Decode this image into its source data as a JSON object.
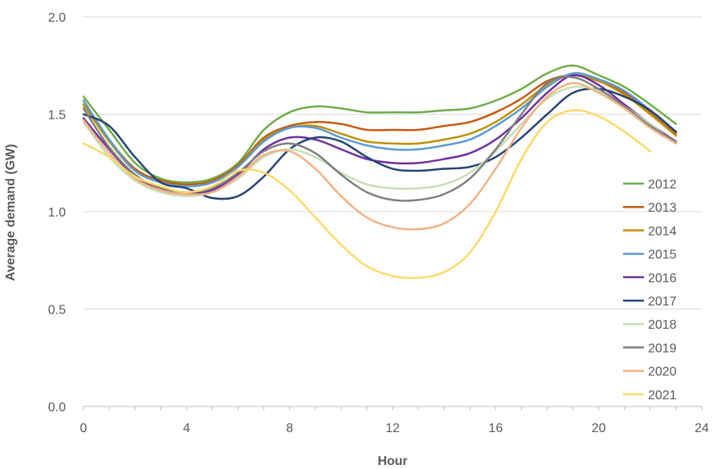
{
  "chart_data": {
    "type": "line",
    "title": "",
    "xlabel": "Hour",
    "ylabel": "Average demand (GW)",
    "xlim": [
      0,
      24
    ],
    "ylim": [
      0,
      2.0
    ],
    "x_ticks": [
      "0",
      "4",
      "8",
      "12",
      "16",
      "20",
      "24"
    ],
    "y_ticks": [
      "0.0",
      "0.5",
      "1.0",
      "1.5",
      "2.0"
    ],
    "grid": "horizontal",
    "legend_position": "right",
    "x": [
      0,
      1,
      2,
      3,
      4,
      5,
      6,
      7,
      8,
      9,
      10,
      11,
      12,
      13,
      14,
      15,
      16,
      17,
      18,
      19,
      20,
      21,
      22,
      23
    ],
    "series": [
      {
        "name": "2012",
        "color": "#70AD47",
        "values": [
          1.59,
          1.42,
          1.25,
          1.17,
          1.15,
          1.17,
          1.25,
          1.42,
          1.51,
          1.54,
          1.53,
          1.51,
          1.51,
          1.51,
          1.52,
          1.53,
          1.57,
          1.63,
          1.71,
          1.75,
          1.7,
          1.64,
          1.55,
          1.45
        ]
      },
      {
        "name": "2013",
        "color": "#C55A11",
        "values": [
          1.57,
          1.37,
          1.22,
          1.16,
          1.14,
          1.16,
          1.24,
          1.38,
          1.44,
          1.46,
          1.45,
          1.42,
          1.42,
          1.42,
          1.44,
          1.46,
          1.51,
          1.58,
          1.67,
          1.7,
          1.67,
          1.61,
          1.51,
          1.4
        ]
      },
      {
        "name": "2014",
        "color": "#BF9000",
        "values": [
          1.55,
          1.36,
          1.21,
          1.15,
          1.13,
          1.15,
          1.23,
          1.37,
          1.43,
          1.44,
          1.4,
          1.36,
          1.35,
          1.35,
          1.37,
          1.4,
          1.46,
          1.55,
          1.65,
          1.7,
          1.67,
          1.6,
          1.5,
          1.39
        ]
      },
      {
        "name": "2015",
        "color": "#5B9BD5",
        "values": [
          1.57,
          1.37,
          1.21,
          1.15,
          1.13,
          1.15,
          1.23,
          1.36,
          1.43,
          1.43,
          1.38,
          1.34,
          1.32,
          1.32,
          1.34,
          1.37,
          1.44,
          1.53,
          1.64,
          1.71,
          1.68,
          1.62,
          1.52,
          1.41
        ]
      },
      {
        "name": "2016",
        "color": "#7030A0",
        "values": [
          1.48,
          1.32,
          1.18,
          1.11,
          1.09,
          1.11,
          1.19,
          1.32,
          1.38,
          1.37,
          1.32,
          1.27,
          1.25,
          1.25,
          1.27,
          1.3,
          1.37,
          1.48,
          1.61,
          1.7,
          1.65,
          1.55,
          1.45,
          1.36
        ]
      },
      {
        "name": "2017",
        "color": "#264478",
        "values": [
          1.5,
          1.44,
          1.28,
          1.15,
          1.12,
          1.07,
          1.08,
          1.18,
          1.32,
          1.38,
          1.36,
          1.28,
          1.22,
          1.21,
          1.22,
          1.23,
          1.28,
          1.38,
          1.5,
          1.61,
          1.63,
          1.59,
          1.52,
          1.41
        ]
      },
      {
        "name": "2018",
        "color": "#C5E0B4",
        "values": [
          1.46,
          1.28,
          1.16,
          1.1,
          1.08,
          1.1,
          1.17,
          1.28,
          1.32,
          1.28,
          1.2,
          1.14,
          1.12,
          1.12,
          1.14,
          1.2,
          1.31,
          1.45,
          1.58,
          1.64,
          1.62,
          1.54,
          1.45,
          1.35
        ]
      },
      {
        "name": "2019",
        "color": "#7F7F7F",
        "values": [
          1.53,
          1.33,
          1.19,
          1.12,
          1.1,
          1.12,
          1.2,
          1.31,
          1.35,
          1.3,
          1.19,
          1.1,
          1.06,
          1.06,
          1.09,
          1.17,
          1.32,
          1.5,
          1.66,
          1.69,
          1.63,
          1.54,
          1.44,
          1.36
        ]
      },
      {
        "name": "2020",
        "color": "#F4B183",
        "values": [
          1.47,
          1.3,
          1.17,
          1.11,
          1.09,
          1.1,
          1.18,
          1.29,
          1.31,
          1.22,
          1.08,
          0.97,
          0.92,
          0.91,
          0.94,
          1.04,
          1.22,
          1.43,
          1.59,
          1.66,
          1.61,
          1.53,
          1.43,
          1.35
        ]
      },
      {
        "name": "2021",
        "color": "#FFD966",
        "values": [
          1.35,
          1.28,
          1.18,
          1.13,
          1.1,
          1.13,
          1.21,
          1.2,
          1.11,
          0.97,
          0.83,
          0.72,
          0.67,
          0.66,
          0.69,
          0.79,
          1.0,
          1.27,
          1.46,
          1.52,
          1.49,
          1.41,
          1.31,
          null
        ]
      }
    ]
  }
}
